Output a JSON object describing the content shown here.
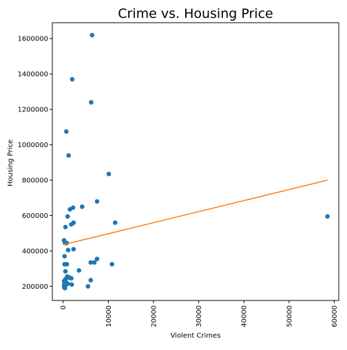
{
  "chart_data": {
    "type": "scatter",
    "title": "Crime vs. Housing Price",
    "xlabel": "Violent Crimes",
    "ylabel": "Housing Price",
    "xlim": [
      -2400,
      61000
    ],
    "ylim": [
      120000,
      1690000
    ],
    "xticks": [
      0,
      10000,
      20000,
      30000,
      40000,
      50000,
      60000
    ],
    "yticks": [
      200000,
      400000,
      600000,
      800000,
      1000000,
      1200000,
      1400000,
      1600000
    ],
    "grid": false,
    "colors": {
      "points": "#1f77b4",
      "fit_line": "#ff7f0e"
    },
    "series": [
      {
        "kind": "scatter",
        "x": [
          6400,
          2000,
          6200,
          700,
          1200,
          10100,
          2200,
          4200,
          7500,
          1500,
          11500,
          2300,
          1800,
          1000,
          500,
          200,
          800,
          400,
          1100,
          2300,
          300,
          800,
          7500,
          6900,
          6100,
          10800,
          3500,
          300,
          500,
          900,
          1400,
          1800,
          1000,
          500,
          200,
          600,
          1000,
          200,
          500,
          1900,
          6100,
          5500,
          200,
          400,
          58500
        ],
        "y": [
          1620000,
          1370000,
          1240000,
          1075000,
          940000,
          835000,
          645000,
          650000,
          680000,
          635000,
          560000,
          560000,
          550000,
          595000,
          535000,
          460000,
          445000,
          445000,
          405000,
          410000,
          370000,
          325000,
          355000,
          335000,
          335000,
          325000,
          290000,
          325000,
          285000,
          255000,
          250000,
          245000,
          250000,
          240000,
          230000,
          225000,
          215000,
          210000,
          205000,
          210000,
          235000,
          200000,
          195000,
          190000,
          595000
        ]
      },
      {
        "kind": "line",
        "x": [
          0,
          58500
        ],
        "y": [
          435000,
          800000
        ]
      }
    ]
  }
}
